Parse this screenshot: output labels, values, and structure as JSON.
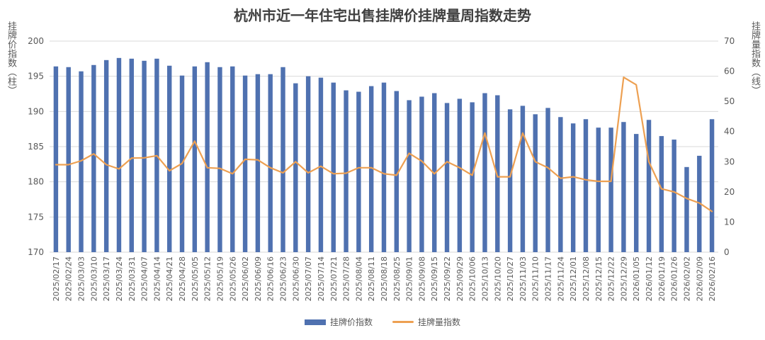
{
  "chart_data": {
    "type": "bar",
    "title": "杭州市近一年住宅出售挂牌价挂牌量周指数走势",
    "ylabel_left": "挂牌价指数（柱）",
    "ylabel_right": "挂牌量指数（线）",
    "ylim_left": [
      170,
      200
    ],
    "yticks_left": [
      "170",
      "175",
      "180",
      "185",
      "190",
      "195",
      "200"
    ],
    "ylim_right": [
      0,
      70
    ],
    "yticks_right": [
      "0",
      "10",
      "20",
      "30",
      "40",
      "50",
      "60",
      "70"
    ],
    "legend_position": "bottom",
    "grid": true,
    "categories": [
      "2025/02/17",
      "2025/02/24",
      "2025/03/03",
      "2025/03/10",
      "2025/03/17",
      "2025/03/24",
      "2025/03/31",
      "2025/04/07",
      "2025/04/14",
      "2025/04/21",
      "2025/04/28",
      "2025/05/05",
      "2025/05/12",
      "2025/05/19",
      "2025/05/26",
      "2025/06/02",
      "2025/06/09",
      "2025/06/16",
      "2025/06/23",
      "2025/06/30",
      "2025/07/07",
      "2025/07/14",
      "2025/07/21",
      "2025/07/28",
      "2025/08/04",
      "2025/08/11",
      "2025/08/18",
      "2025/08/25",
      "2025/09/01",
      "2025/09/08",
      "2025/09/15",
      "2025/09/22",
      "2025/09/29",
      "2025/10/06",
      "2025/10/13",
      "2025/10/20",
      "2025/10/27",
      "2025/11/03",
      "2025/11/10",
      "2025/11/17",
      "2025/11/24",
      "2025/12/01",
      "2025/12/08",
      "2025/12/15",
      "2025/12/22",
      "2025/12/29",
      "2026/01/05",
      "2026/01/12",
      "2026/01/19",
      "2026/01/26",
      "2026/02/02",
      "2026/02/09",
      "2026/02/16"
    ],
    "series": [
      {
        "name": "挂牌价指数",
        "type": "bar",
        "axis": "left",
        "color": "#4f71b0",
        "values": [
          196.4,
          196.3,
          195.7,
          196.6,
          197.3,
          197.6,
          197.5,
          197.2,
          197.5,
          196.5,
          195.1,
          196.4,
          197.0,
          196.3,
          196.4,
          195.1,
          195.3,
          195.3,
          196.3,
          194.0,
          195.0,
          194.8,
          194.1,
          193.0,
          192.8,
          193.6,
          194.1,
          192.9,
          191.6,
          192.1,
          192.6,
          191.2,
          191.8,
          191.3,
          192.6,
          192.3,
          190.3,
          190.8,
          189.6,
          190.5,
          189.2,
          188.3,
          188.9,
          187.7,
          187.7,
          188.5,
          186.8,
          188.8,
          186.5,
          186.0,
          182.1,
          183.7,
          188.9
        ]
      },
      {
        "name": "挂牌量指数",
        "type": "line",
        "axis": "right",
        "color": "#eda052",
        "values": [
          29.0,
          29.0,
          30.3,
          32.6,
          29.0,
          27.6,
          31.2,
          31.3,
          32.0,
          27.0,
          29.4,
          36.8,
          28.0,
          27.8,
          26.0,
          30.8,
          30.6,
          28.0,
          26.3,
          30.0,
          26.3,
          28.5,
          26.0,
          26.2,
          28.0,
          28.0,
          26.0,
          25.5,
          32.8,
          30.2,
          26.0,
          30.0,
          28.0,
          25.5,
          39.5,
          25.0,
          25.0,
          39.5,
          30.0,
          28.0,
          24.5,
          25.0,
          24.0,
          23.5,
          23.5,
          58.0,
          55.5,
          30.0,
          21.0,
          20.0,
          17.8,
          16.3,
          13.5
        ]
      }
    ]
  }
}
